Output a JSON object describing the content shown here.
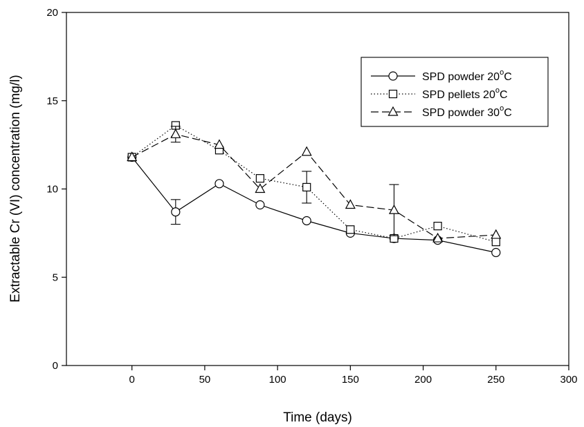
{
  "chart_data": {
    "type": "line",
    "title": "",
    "xlabel": "Time (days)",
    "ylabel": "Extractable Cr (VI) concentration (mg/l)",
    "xlim": [
      -45,
      300
    ],
    "ylim": [
      0,
      20
    ],
    "xticks": [
      0,
      50,
      100,
      150,
      200,
      250,
      300
    ],
    "yticks": [
      0,
      5,
      10,
      15,
      20
    ],
    "legend_position": "top-right",
    "series": [
      {
        "name": "SPD powder 20",
        "name_sup": "o",
        "name_suffix": "C",
        "marker": "circle",
        "dash": "solid",
        "x": [
          0,
          30,
          60,
          88,
          120,
          150,
          180,
          210,
          250
        ],
        "y": [
          11.8,
          8.7,
          10.3,
          9.1,
          8.2,
          7.5,
          7.2,
          7.1,
          6.4
        ],
        "error": [
          0,
          0.7,
          0,
          0,
          0,
          0,
          0,
          0,
          0
        ]
      },
      {
        "name": "SPD pellets 20",
        "name_sup": "o",
        "name_suffix": "C",
        "marker": "square",
        "dash": "dotted",
        "x": [
          0,
          30,
          60,
          88,
          120,
          150,
          180,
          210,
          250
        ],
        "y": [
          11.8,
          13.6,
          12.2,
          10.6,
          10.1,
          7.7,
          7.2,
          7.9,
          7.0
        ],
        "error": [
          0,
          0,
          0,
          0,
          0.9,
          0,
          0,
          0,
          0
        ]
      },
      {
        "name": "SPD powder 30",
        "name_sup": "o",
        "name_suffix": "C",
        "marker": "triangle",
        "dash": "dashed",
        "x": [
          0,
          30,
          60,
          88,
          120,
          150,
          180,
          210,
          250
        ],
        "y": [
          11.8,
          13.1,
          12.5,
          10.0,
          12.1,
          9.1,
          8.8,
          7.2,
          7.4
        ],
        "error": [
          0,
          0.45,
          0,
          0,
          0,
          0,
          1.45,
          0,
          0
        ]
      }
    ]
  }
}
